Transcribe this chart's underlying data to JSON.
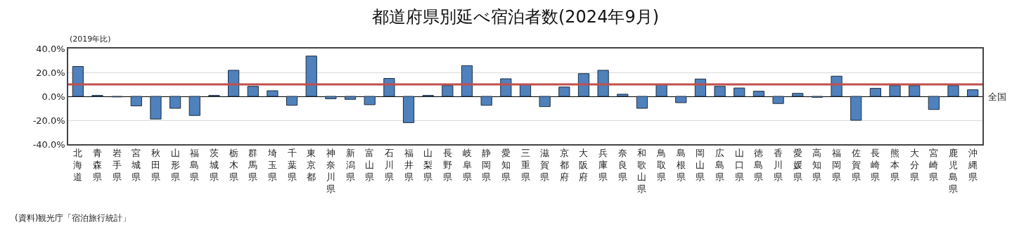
{
  "chart_data": {
    "type": "bar",
    "title": "都道府県別延べ宿泊者数(2024年9月)",
    "ylabel": "(2019年比)",
    "categories": [
      "北海道",
      "青森県",
      "岩手県",
      "宮城県",
      "秋田県",
      "山形県",
      "福島県",
      "茨城県",
      "栃木県",
      "群馬県",
      "埼玉県",
      "千葉県",
      "東京都",
      "神奈川県",
      "新潟県",
      "富山県",
      "石川県",
      "福井県",
      "山梨県",
      "長野県",
      "岐阜県",
      "静岡県",
      "愛知県",
      "三重県",
      "滋賀県",
      "京都府",
      "大阪府",
      "兵庫県",
      "奈良県",
      "和歌山県",
      "鳥取県",
      "島根県",
      "岡山県",
      "広島県",
      "山口県",
      "徳島県",
      "香川県",
      "愛媛県",
      "高知県",
      "福岡県",
      "佐賀県",
      "長崎県",
      "熊本県",
      "大分県",
      "宮崎県",
      "鹿児島県",
      "沖縄県"
    ],
    "values": [
      25,
      0.8,
      -0.5,
      -8,
      -19,
      -10,
      -16,
      0.8,
      21.8,
      8.4,
      4.7,
      -7.5,
      33.7,
      -2,
      -2.5,
      -7,
      15,
      -22,
      0.8,
      9,
      25.7,
      -7.5,
      14.7,
      10,
      -8.6,
      7.8,
      19,
      21.8,
      1.8,
      -10,
      10,
      -5.3,
      14.5,
      8.4,
      7,
      4.3,
      -6,
      2.5,
      -0.8,
      16.9,
      -20,
      6.7,
      9,
      9,
      -11,
      9,
      5.5
    ],
    "color": "#4f81bd",
    "ylim": [
      -40,
      40
    ],
    "yticks": [
      {
        "value": -40,
        "label": "-40.0%"
      },
      {
        "value": -20,
        "label": "-20.0%"
      },
      {
        "value": 0,
        "label": "0.0%"
      },
      {
        "value": 20,
        "label": "20.0%"
      },
      {
        "value": 40,
        "label": "40.0%"
      }
    ],
    "grid": "y",
    "legend": false,
    "ref_lines": [
      {
        "axis": "y",
        "value": 10,
        "label": "全国",
        "color": "#c0504d"
      }
    ],
    "annotations": [
      "(資料)観光庁「宿泊旅行統計」"
    ]
  }
}
